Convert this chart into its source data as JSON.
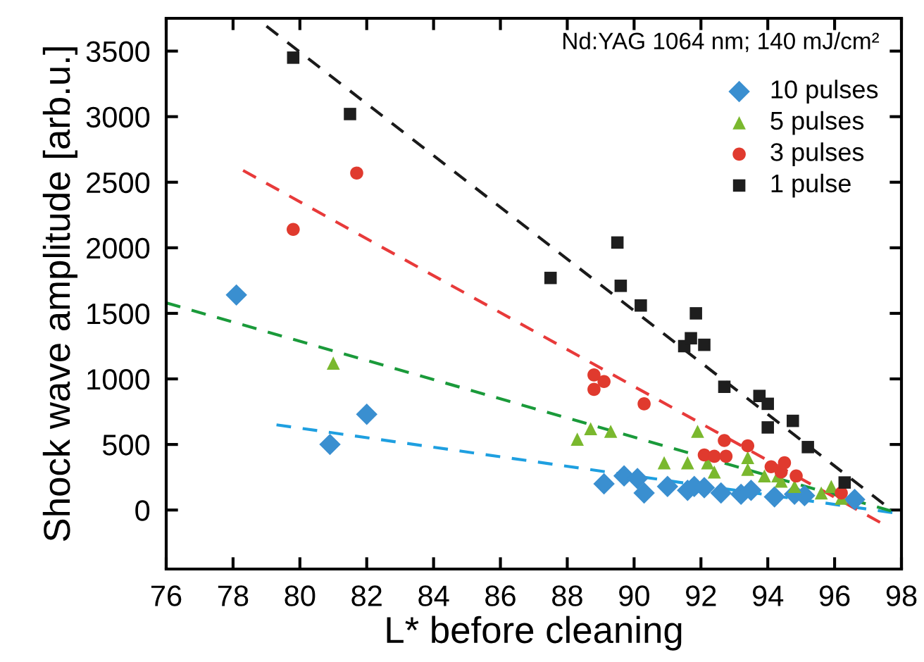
{
  "chart_data": {
    "type": "scatter",
    "xlabel": "L* before cleaning",
    "ylabel": "Shock wave amplitude [arb.u.]",
    "annotations": [
      "Nd:YAG 1064 nm; 140 mJ/cm²"
    ],
    "xlim": [
      76,
      98
    ],
    "xticks": [
      76,
      78,
      80,
      82,
      84,
      86,
      88,
      90,
      92,
      94,
      96,
      98
    ],
    "ylim": [
      -450,
      3750
    ],
    "yticks": [
      0,
      500,
      1000,
      1500,
      2000,
      2500,
      3000,
      3500
    ],
    "grid": false,
    "legend": "top right",
    "series": [
      {
        "name": "10 pulses",
        "marker": "diamond",
        "color": "#3a8fd0",
        "x": [
          78.1,
          80.9,
          82.0,
          89.1,
          89.7,
          90.1,
          90.3,
          91.0,
          91.6,
          91.8,
          92.1,
          92.6,
          93.2,
          93.5,
          94.2,
          94.8,
          95.1,
          96.6
        ],
        "values": [
          1640,
          500,
          730,
          200,
          260,
          240,
          130,
          180,
          150,
          180,
          170,
          130,
          120,
          150,
          100,
          120,
          110,
          80
        ]
      },
      {
        "name": "5 pulses",
        "marker": "triangle",
        "color": "#7ab82e",
        "x": [
          81.0,
          88.3,
          88.7,
          89.3,
          90.9,
          91.6,
          91.9,
          92.2,
          92.4,
          93.4,
          93.4,
          93.9,
          94.3,
          94.4,
          94.8,
          95.6,
          95.9,
          96.2
        ],
        "values": [
          1120,
          540,
          620,
          600,
          360,
          360,
          600,
          360,
          290,
          400,
          310,
          260,
          260,
          220,
          180,
          130,
          180,
          90
        ]
      },
      {
        "name": "3 pulses",
        "marker": "circle",
        "color": "#e03a2e",
        "x": [
          79.8,
          81.7,
          88.8,
          88.8,
          89.1,
          90.3,
          92.1,
          92.4,
          92.7,
          92.75,
          93.4,
          94.1,
          94.4,
          94.5,
          94.85,
          96.2
        ],
        "values": [
          2140,
          2570,
          1030,
          920,
          980,
          810,
          420,
          410,
          530,
          410,
          490,
          330,
          290,
          360,
          260,
          130
        ]
      },
      {
        "name": "1 pulse",
        "marker": "square",
        "color": "#1e1e1e",
        "x": [
          79.8,
          81.5,
          87.5,
          89.5,
          89.6,
          90.2,
          91.5,
          91.7,
          91.85,
          92.1,
          92.7,
          93.75,
          94.0,
          94.0,
          94.75,
          95.2,
          96.3
        ],
        "values": [
          3450,
          3020,
          1770,
          2040,
          1710,
          1560,
          1250,
          1310,
          1500,
          1260,
          940,
          870,
          810,
          630,
          680,
          480,
          210
        ]
      },
      {
        "type": "line",
        "line_style": "dashed",
        "color": "#1e9fe0",
        "x": [
          79.3,
          98
        ],
        "values": [
          650,
          -30
        ]
      },
      {
        "type": "line",
        "line_style": "dashed",
        "color": "#1a9a3a",
        "x": [
          76,
          98
        ],
        "values": [
          1580,
          -30
        ]
      },
      {
        "type": "line",
        "line_style": "dashed",
        "color": "#e83a3a",
        "x": [
          78.3,
          97.4
        ],
        "values": [
          2590,
          -100
        ]
      },
      {
        "type": "line",
        "line_style": "dashed",
        "color": "#1a1a1a",
        "x": [
          79.0,
          97.6
        ],
        "values": [
          3690,
          20
        ]
      }
    ]
  }
}
